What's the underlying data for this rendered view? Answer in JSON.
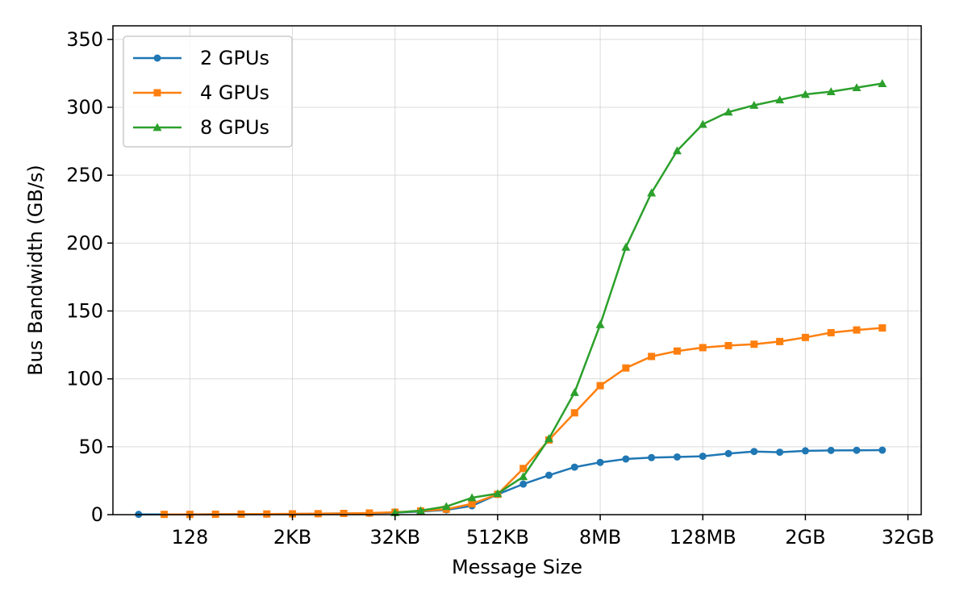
{
  "chart_data": {
    "type": "line",
    "title": "",
    "xlabel": "Message Size",
    "ylabel": "Bus Bandwidth (GB/s)",
    "x_scale": "log2",
    "x_unit": "bytes",
    "xlim": [
      16,
      49152000000
    ],
    "ylim": [
      0,
      360
    ],
    "x_ticks": [
      128,
      2048,
      32768,
      524288,
      8388608,
      134217728,
      2147483648,
      34359738368
    ],
    "x_tick_labels": [
      "128",
      "2KB",
      "32KB",
      "512KB",
      "8MB",
      "128MB",
      "2GB",
      "32GB"
    ],
    "y_ticks": [
      0,
      50,
      100,
      150,
      200,
      250,
      300,
      350
    ],
    "y_tick_labels": [
      "0",
      "50",
      "100",
      "150",
      "200",
      "250",
      "300",
      "350"
    ],
    "grid": true,
    "legend_position": "top-left",
    "series": [
      {
        "name": "2 GPUs",
        "color": "#1f77b4",
        "marker": "circle",
        "x": [
          32,
          128,
          256,
          512,
          1024,
          2048,
          4096,
          8192,
          16384,
          32768,
          65536,
          131072,
          262144,
          524288,
          1048576,
          2097152,
          4194304,
          8388608,
          16777216,
          33554432,
          67108864,
          134217728,
          268435456,
          536870912,
          1073741824,
          2147483648,
          4294967296,
          8589934592,
          17179869184
        ],
        "values": [
          0.2,
          0.2,
          0.3,
          0.3,
          0.4,
          0.5,
          0.7,
          0.9,
          1.0,
          1.5,
          2.3,
          3.5,
          6.5,
          15.0,
          22.5,
          29.0,
          35.0,
          38.5,
          41.0,
          42.0,
          42.5,
          43.0,
          45.0,
          46.5,
          46.0,
          47.0,
          47.3,
          47.4,
          47.5
        ]
      },
      {
        "name": "4 GPUs",
        "color": "#ff7f0e",
        "marker": "square",
        "x": [
          64,
          128,
          256,
          512,
          1024,
          2048,
          4096,
          8192,
          16384,
          32768,
          65536,
          131072,
          262144,
          524288,
          1048576,
          2097152,
          4194304,
          8388608,
          16777216,
          33554432,
          67108864,
          134217728,
          268435456,
          536870912,
          1073741824,
          2147483648,
          4294967296,
          8589934592,
          17179869184
        ],
        "values": [
          0.2,
          0.2,
          0.3,
          0.4,
          0.5,
          0.6,
          0.7,
          0.9,
          1.2,
          1.8,
          2.7,
          4.0,
          8.0,
          15.0,
          34.0,
          55.0,
          75.0,
          95.0,
          108.0,
          116.5,
          120.5,
          123.0,
          124.5,
          125.5,
          127.5,
          130.5,
          134.0,
          136.0,
          137.5
        ]
      },
      {
        "name": "8 GPUs",
        "color": "#2ca02c",
        "marker": "triangle",
        "x": [
          32768,
          65536,
          131072,
          262144,
          524288,
          1048576,
          2097152,
          4194304,
          8388608,
          16777216,
          33554432,
          67108864,
          134217728,
          268435456,
          536870912,
          1073741824,
          2147483648,
          4294967296,
          8589934592,
          17179869184
        ],
        "values": [
          1.5,
          3.0,
          6.0,
          12.5,
          15.5,
          28.0,
          56.0,
          90.0,
          140.0,
          197.0,
          237.0,
          268.0,
          287.5,
          296.5,
          301.5,
          305.5,
          309.5,
          311.5,
          314.5,
          317.5
        ]
      }
    ]
  }
}
